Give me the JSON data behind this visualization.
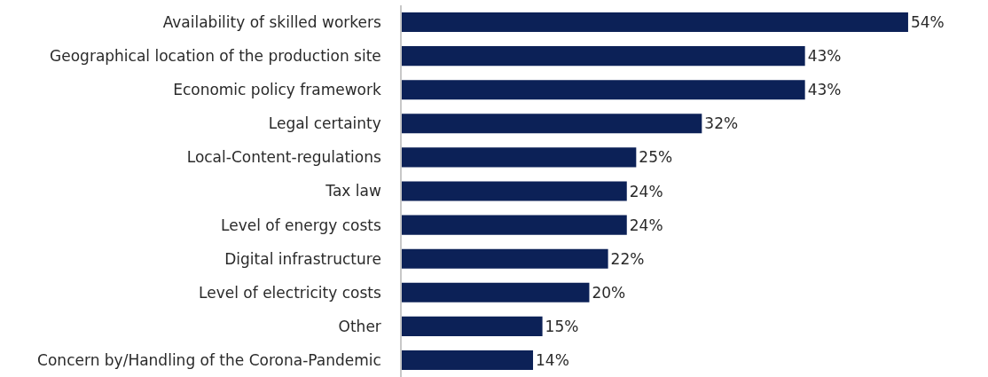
{
  "chart_data": {
    "type": "bar",
    "orientation": "horizontal",
    "categories": [
      "Availability of skilled workers",
      "Geographical location of the production site",
      "Economic policy framework",
      "Legal certainty",
      "Local-Content-regulations",
      "Tax law",
      "Level of energy costs",
      "Digital infrastructure",
      "Level of electricity costs",
      "Other",
      "Concern by/Handling of the Corona-Pandemic"
    ],
    "values": [
      54,
      43,
      43,
      32,
      25,
      24,
      24,
      22,
      20,
      15,
      14
    ],
    "value_labels": [
      "54%",
      "43%",
      "43%",
      "32%",
      "25%",
      "24%",
      "24%",
      "22%",
      "20%",
      "15%",
      "14%"
    ],
    "color": "#0c2157",
    "grid": false,
    "legend": false
  }
}
